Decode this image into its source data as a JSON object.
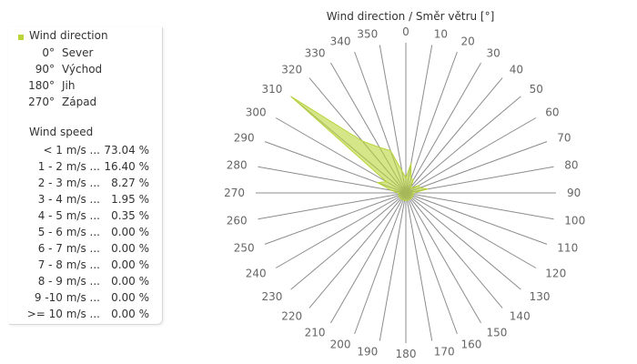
{
  "chart_data": {
    "type": "radar-area",
    "title": "Wind direction / Směr větru [°]",
    "series": [
      {
        "name": "Wind direction",
        "color": "#b9d53a",
        "values": [
          1,
          2,
          1,
          1,
          0.5,
          0.5,
          1,
          1,
          1.5,
          0.5,
          0.5,
          0.5,
          0.5,
          0.5,
          0.5,
          0.5,
          0.5,
          0.5,
          0.5,
          0.5,
          0.5,
          0.5,
          0.5,
          0.5,
          0.5,
          0.5,
          0.5,
          0.5,
          1,
          2,
          1.5,
          10,
          4.5,
          3.5,
          3,
          1.5
        ]
      }
    ],
    "categories": [
      "0",
      "10",
      "20",
      "30",
      "40",
      "50",
      "60",
      "70",
      "80",
      "90",
      "100",
      "110",
      "120",
      "130",
      "140",
      "150",
      "160",
      "170",
      "180",
      "190",
      "200",
      "210",
      "220",
      "230",
      "240",
      "250",
      "260",
      "270",
      "280",
      "290",
      "300",
      "310",
      "320",
      "330",
      "340",
      "350"
    ],
    "rmax": 10,
    "grid": true,
    "legend_position": "left"
  },
  "legend": {
    "series_label": "Wind direction",
    "directions": [
      {
        "deg": "0°",
        "name": "Sever"
      },
      {
        "deg": "90°",
        "name": "Východ"
      },
      {
        "deg": "180°",
        "name": "Jih"
      },
      {
        "deg": "270°",
        "name": "Západ"
      }
    ],
    "speed_title": "Wind speed",
    "speeds": [
      {
        "range": "< 1 m/s ...",
        "value": "73.04 %"
      },
      {
        "range": "1 - 2 m/s ...",
        "value": "16.40 %"
      },
      {
        "range": "2 - 3 m/s ...",
        "value": "8.27 %"
      },
      {
        "range": "3 - 4 m/s ...",
        "value": "1.95 %"
      },
      {
        "range": "4 - 5 m/s ...",
        "value": "0.35 %"
      },
      {
        "range": "5 - 6 m/s ...",
        "value": "0.00 %"
      },
      {
        "range": "6 - 7 m/s ...",
        "value": "0.00 %"
      },
      {
        "range": "7 - 8 m/s ...",
        "value": "0.00 %"
      },
      {
        "range": "8 - 9 m/s ...",
        "value": "0.00 %"
      },
      {
        "range": "9 -10 m/s ...",
        "value": "0.00 %"
      },
      {
        "range": ">= 10 m/s ...",
        "value": "0.00 %"
      }
    ]
  }
}
